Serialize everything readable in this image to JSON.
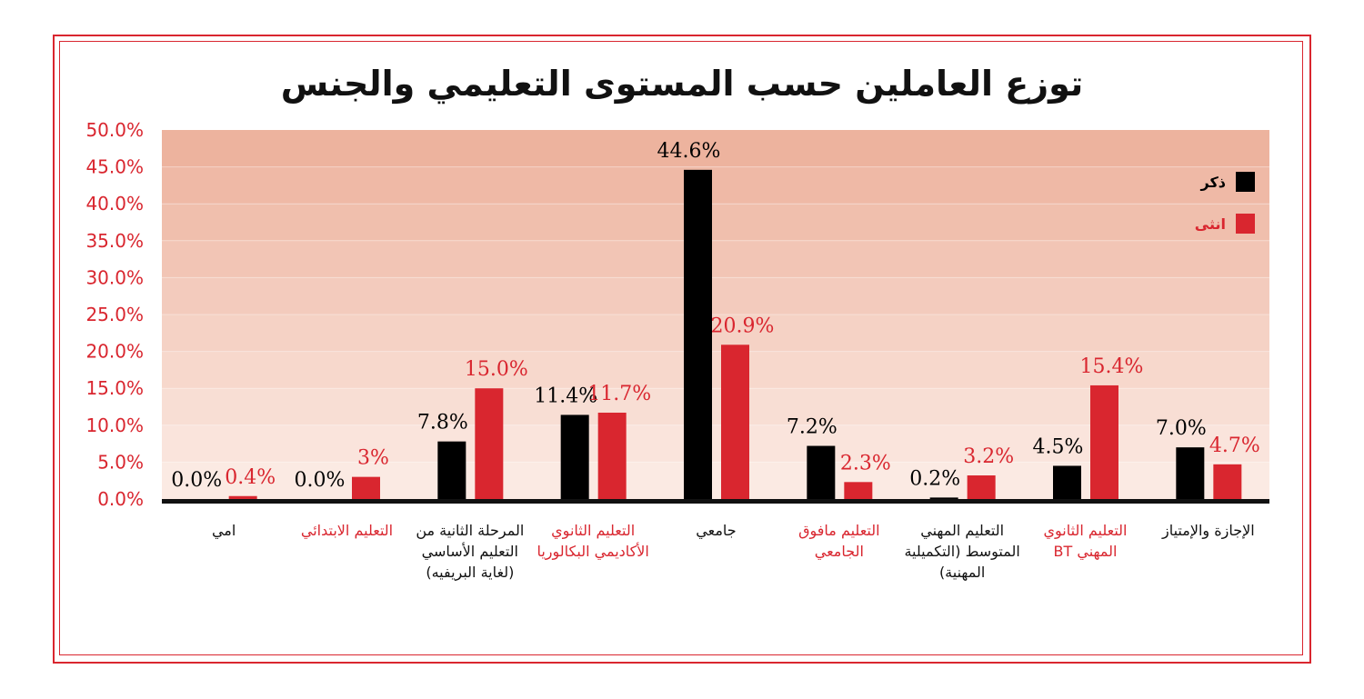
{
  "chart_data": {
    "type": "bar",
    "title": "توزع العاملين حسب المستوى التعليمي والجنس",
    "categories": [
      "امي",
      "التعليم الابتدائي",
      "المرحلة الثانية من التعليم الأساسي (لغاية البريفيه)",
      "التعليم الثانوي الأكاديمي البكالوريا",
      "جامعي",
      "التعليم مافوق الجامعي",
      "التعليم المهني المتوسط (التكميلية المهنية)",
      "التعليم الثانوي المهني BT",
      "الإجازة والإمتياز"
    ],
    "category_colors": [
      "#111111",
      "#d9262f",
      "#111111",
      "#d9262f",
      "#111111",
      "#d9262f",
      "#111111",
      "#d9262f",
      "#111111"
    ],
    "series": [
      {
        "name": "ذكر",
        "color": "#000000",
        "values": [
          0.0,
          0.0,
          7.8,
          11.4,
          44.6,
          7.2,
          0.2,
          4.5,
          7.0
        ],
        "labels": [
          "0.0%",
          "0.0%",
          "7.8%",
          "11.4%",
          "44.6%",
          "7.2%",
          "0.2%",
          "4.5%",
          "7.0%"
        ]
      },
      {
        "name": "انثى",
        "color": "#d9262f",
        "values": [
          0.4,
          3.0,
          15.0,
          11.7,
          20.9,
          2.3,
          3.2,
          15.4,
          4.7
        ],
        "labels": [
          "0.4%",
          "3%",
          "15.0%",
          "11.7%",
          "20.9%",
          "2.3%",
          "3.2%",
          "15.4%",
          "4.7%"
        ]
      }
    ],
    "ylim": [
      0,
      50
    ],
    "yticks": [
      "0.0%",
      "5.0%",
      "10.0%",
      "15.0%",
      "20.0%",
      "25.0%",
      "30.0%",
      "35.0%",
      "40.0%",
      "45.0%",
      "50.0%"
    ],
    "legend_position": "top-right",
    "colors": {
      "male": "#000000",
      "female": "#d9262f",
      "tick_text": "#d9262f"
    }
  }
}
